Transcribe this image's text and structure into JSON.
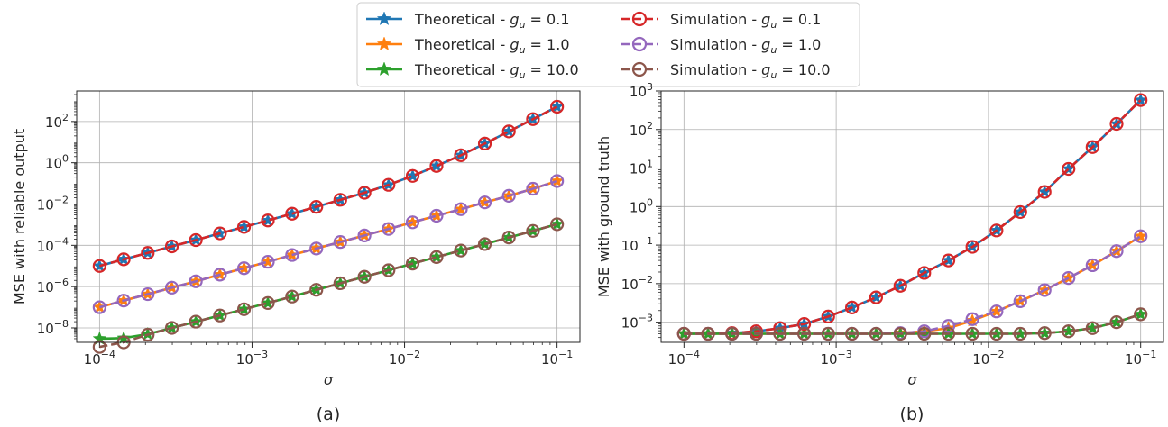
{
  "legend": [
    {
      "prefix": "Theoretical - ",
      "g": "0.1"
    },
    {
      "prefix": "Theoretical - ",
      "g": "1.0"
    },
    {
      "prefix": "Theoretical - ",
      "g": "10.0"
    },
    {
      "prefix": "Simulation - ",
      "g": "0.1"
    },
    {
      "prefix": "Simulation - ",
      "g": "1.0"
    },
    {
      "prefix": "Simulation - ",
      "g": "10.0"
    }
  ],
  "colors": {
    "theory_0.1": "#1f77b4",
    "theory_1.0": "#ff7f0e",
    "theory_10.0": "#2ca02c",
    "sim_0.1": "#d62728",
    "sim_1.0": "#9467bd",
    "sim_10.0": "#8c564b",
    "grid": "#b0b0b0",
    "axis": "#262626"
  },
  "chart_data": [
    {
      "type": "line",
      "caption": "(a)",
      "xlabel": "σ",
      "ylabel": "MSE with reliable output",
      "xscale": "log",
      "yscale": "log",
      "xlim": [
        0.0001,
        0.1
      ],
      "ylim": [
        2e-09,
        3000
      ],
      "grid": true,
      "x_ticks": [
        {
          "base": "10",
          "exp": "−4"
        },
        {
          "base": "10",
          "exp": "−3"
        },
        {
          "base": "10",
          "exp": "−2"
        },
        {
          "base": "10",
          "exp": "−1"
        }
      ],
      "y_ticks": [
        {
          "base": "10",
          "exp": "−8"
        },
        {
          "base": "10",
          "exp": "−6"
        },
        {
          "base": "10",
          "exp": "−4"
        },
        {
          "base": "10",
          "exp": "−2"
        },
        {
          "base": "10",
          "exp": "0"
        },
        {
          "base": "10",
          "exp": "2"
        }
      ],
      "x": [
        0.0001,
        0.000144,
        0.000207,
        0.000298,
        0.000428,
        0.000616,
        0.000886,
        0.00127,
        0.00183,
        0.00264,
        0.00379,
        0.00546,
        0.00785,
        0.0113,
        0.0162,
        0.0234,
        0.0336,
        0.0483,
        0.0695,
        0.1
      ],
      "series": [
        {
          "name": "Theoretical - g_u = 0.1",
          "kind": "theory",
          "values": [
            1e-05,
            2.1e-05,
            4.3e-05,
            8.9e-05,
            0.00018,
            0.00038,
            0.00078,
            0.0016,
            0.0034,
            0.0073,
            0.016,
            0.035,
            0.085,
            0.23,
            0.7,
            2.3,
            8.5,
            33,
            130,
            520
          ]
        },
        {
          "name": "Theoretical - g_u = 1.0",
          "kind": "theory",
          "values": [
            1e-07,
            2.1e-07,
            4.3e-07,
            8.9e-07,
            1.8e-06,
            3.8e-06,
            7.8e-06,
            1.6e-05,
            3.4e-05,
            7e-05,
            0.000145,
            0.0003,
            0.00062,
            0.0013,
            0.0027,
            0.0056,
            0.012,
            0.025,
            0.055,
            0.13
          ]
        },
        {
          "name": "Theoretical - g_u = 10.0",
          "kind": "theory",
          "values": [
            3e-09,
            3.2e-09,
            5e-09,
            1e-08,
            2e-08,
            4e-08,
            8e-08,
            1.6e-07,
            3.3e-07,
            7e-07,
            1.45e-06,
            3e-06,
            6.2e-06,
            1.3e-05,
            2.7e-05,
            5.6e-05,
            0.000115,
            0.00024,
            0.0005,
            0.00105
          ]
        },
        {
          "name": "Simulation - g_u = 0.1",
          "kind": "sim",
          "values": [
            1e-05,
            2.1e-05,
            4.3e-05,
            8.9e-05,
            0.00018,
            0.00038,
            0.00078,
            0.0016,
            0.0034,
            0.0073,
            0.016,
            0.035,
            0.085,
            0.23,
            0.7,
            2.3,
            8.5,
            33,
            130,
            520
          ]
        },
        {
          "name": "Simulation - g_u = 1.0",
          "kind": "sim",
          "values": [
            1e-07,
            2.1e-07,
            4.3e-07,
            8.9e-07,
            1.8e-06,
            3.8e-06,
            7.8e-06,
            1.6e-05,
            3.4e-05,
            7e-05,
            0.000145,
            0.0003,
            0.00062,
            0.0013,
            0.0027,
            0.0056,
            0.012,
            0.025,
            0.055,
            0.13
          ]
        },
        {
          "name": "Simulation - g_u = 10.0",
          "kind": "sim",
          "values": [
            1.2e-09,
            2e-09,
            4.7e-09,
            1e-08,
            2e-08,
            4e-08,
            8e-08,
            1.6e-07,
            3.3e-07,
            7e-07,
            1.45e-06,
            3e-06,
            6.2e-06,
            1.3e-05,
            2.7e-05,
            5.6e-05,
            0.000115,
            0.00024,
            0.0005,
            0.00105
          ]
        }
      ]
    },
    {
      "type": "line",
      "caption": "(b)",
      "xlabel": "σ",
      "ylabel": "MSE with ground truth",
      "xscale": "log",
      "yscale": "log",
      "xlim": [
        0.0001,
        0.1
      ],
      "ylim": [
        0.0003,
        1000
      ],
      "grid": true,
      "x_ticks": [
        {
          "base": "10",
          "exp": "−4"
        },
        {
          "base": "10",
          "exp": "−3"
        },
        {
          "base": "10",
          "exp": "−2"
        },
        {
          "base": "10",
          "exp": "−1"
        }
      ],
      "y_ticks": [
        {
          "base": "10",
          "exp": "−3"
        },
        {
          "base": "10",
          "exp": "−2"
        },
        {
          "base": "10",
          "exp": "−1"
        },
        {
          "base": "10",
          "exp": "0"
        },
        {
          "base": "10",
          "exp": "1"
        },
        {
          "base": "10",
          "exp": "2"
        },
        {
          "base": "10",
          "exp": "3"
        }
      ],
      "x": [
        0.0001,
        0.000144,
        0.000207,
        0.000298,
        0.000428,
        0.000616,
        0.000886,
        0.00127,
        0.00183,
        0.00264,
        0.00379,
        0.00546,
        0.00785,
        0.0113,
        0.0162,
        0.0234,
        0.0336,
        0.0483,
        0.0695,
        0.1
      ],
      "series": [
        {
          "name": "Theoretical - g_u = 0.1",
          "kind": "theory",
          "values": [
            0.0005,
            0.0005,
            0.00052,
            0.00058,
            0.0007,
            0.0009,
            0.0014,
            0.0024,
            0.0044,
            0.0088,
            0.019,
            0.04,
            0.09,
            0.24,
            0.72,
            2.4,
            9.5,
            35,
            140,
            580
          ]
        },
        {
          "name": "Theoretical - g_u = 1.0",
          "kind": "theory",
          "values": [
            0.0005,
            0.0005,
            0.0005,
            0.0005,
            0.0005,
            0.0005,
            0.0005,
            0.0005,
            0.0005,
            0.00052,
            0.00058,
            0.0007,
            0.0011,
            0.0019,
            0.0035,
            0.0068,
            0.014,
            0.03,
            0.07,
            0.17
          ]
        },
        {
          "name": "Theoretical - g_u = 10.0",
          "kind": "theory",
          "values": [
            0.0005,
            0.0005,
            0.0005,
            0.0005,
            0.0005,
            0.0005,
            0.0005,
            0.0005,
            0.0005,
            0.0005,
            0.0005,
            0.0005,
            0.0005,
            0.0005,
            0.0005,
            0.00052,
            0.00058,
            0.0007,
            0.001,
            0.0016
          ]
        },
        {
          "name": "Simulation - g_u = 0.1",
          "kind": "sim",
          "values": [
            0.0005,
            0.0005,
            0.00052,
            0.00058,
            0.0007,
            0.0009,
            0.0014,
            0.0024,
            0.0044,
            0.0088,
            0.019,
            0.04,
            0.09,
            0.24,
            0.72,
            2.4,
            9.5,
            35,
            140,
            580
          ]
        },
        {
          "name": "Simulation - g_u = 1.0",
          "kind": "sim",
          "values": [
            0.0005,
            0.0005,
            0.0005,
            0.0005,
            0.0005,
            0.0005,
            0.0005,
            0.0005,
            0.0005,
            0.00052,
            0.00058,
            0.0008,
            0.0012,
            0.0019,
            0.0035,
            0.0068,
            0.014,
            0.03,
            0.07,
            0.17
          ]
        },
        {
          "name": "Simulation - g_u = 10.0",
          "kind": "sim",
          "values": [
            0.0005,
            0.0005,
            0.0005,
            0.0005,
            0.0005,
            0.0005,
            0.0005,
            0.0005,
            0.0005,
            0.0005,
            0.0005,
            0.0005,
            0.0005,
            0.0005,
            0.0005,
            0.00052,
            0.00058,
            0.0007,
            0.001,
            0.0016
          ]
        }
      ]
    }
  ]
}
